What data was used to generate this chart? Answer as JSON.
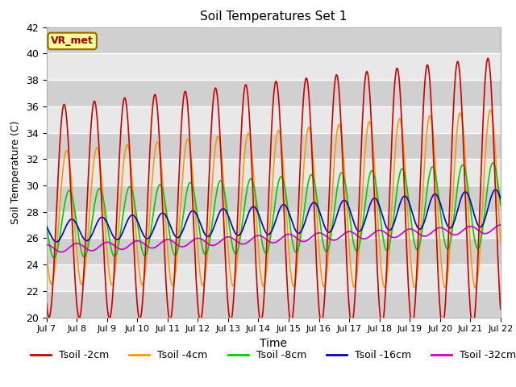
{
  "title": "Soil Temperatures Set 1",
  "xlabel": "Time",
  "ylabel": "Soil Temperature (C)",
  "ylim": [
    20,
    42
  ],
  "yticks": [
    20,
    22,
    24,
    26,
    28,
    30,
    32,
    34,
    36,
    38,
    40,
    42
  ],
  "xtick_labels": [
    "Jul 7",
    "Jul 8",
    "Jul 9",
    "Jul 10",
    "Jul 11",
    "Jul 12",
    "Jul 13",
    "Jul 14",
    "Jul 15",
    "Jul 16",
    "Jul 17",
    "Jul 18",
    "Jul 19",
    "Jul 20",
    "Jul 21",
    "Jul 22"
  ],
  "colors": {
    "Tsoil -2cm": "#cc0000",
    "Tsoil -4cm": "#ff9900",
    "Tsoil -8cm": "#00cc00",
    "Tsoil -16cm": "#0000cc",
    "Tsoil -32cm": "#cc00cc"
  },
  "bg_color_light": "#e8e8e8",
  "bg_color_dark": "#d0d0d0",
  "annotation_text": "VR_met",
  "annotation_bg": "#ffff99",
  "annotation_border": "#996600",
  "legend_labels": [
    "Tsoil -2cm",
    "Tsoil -4cm",
    "Tsoil -8cm",
    "Tsoil -16cm",
    "Tsoil -32cm"
  ]
}
